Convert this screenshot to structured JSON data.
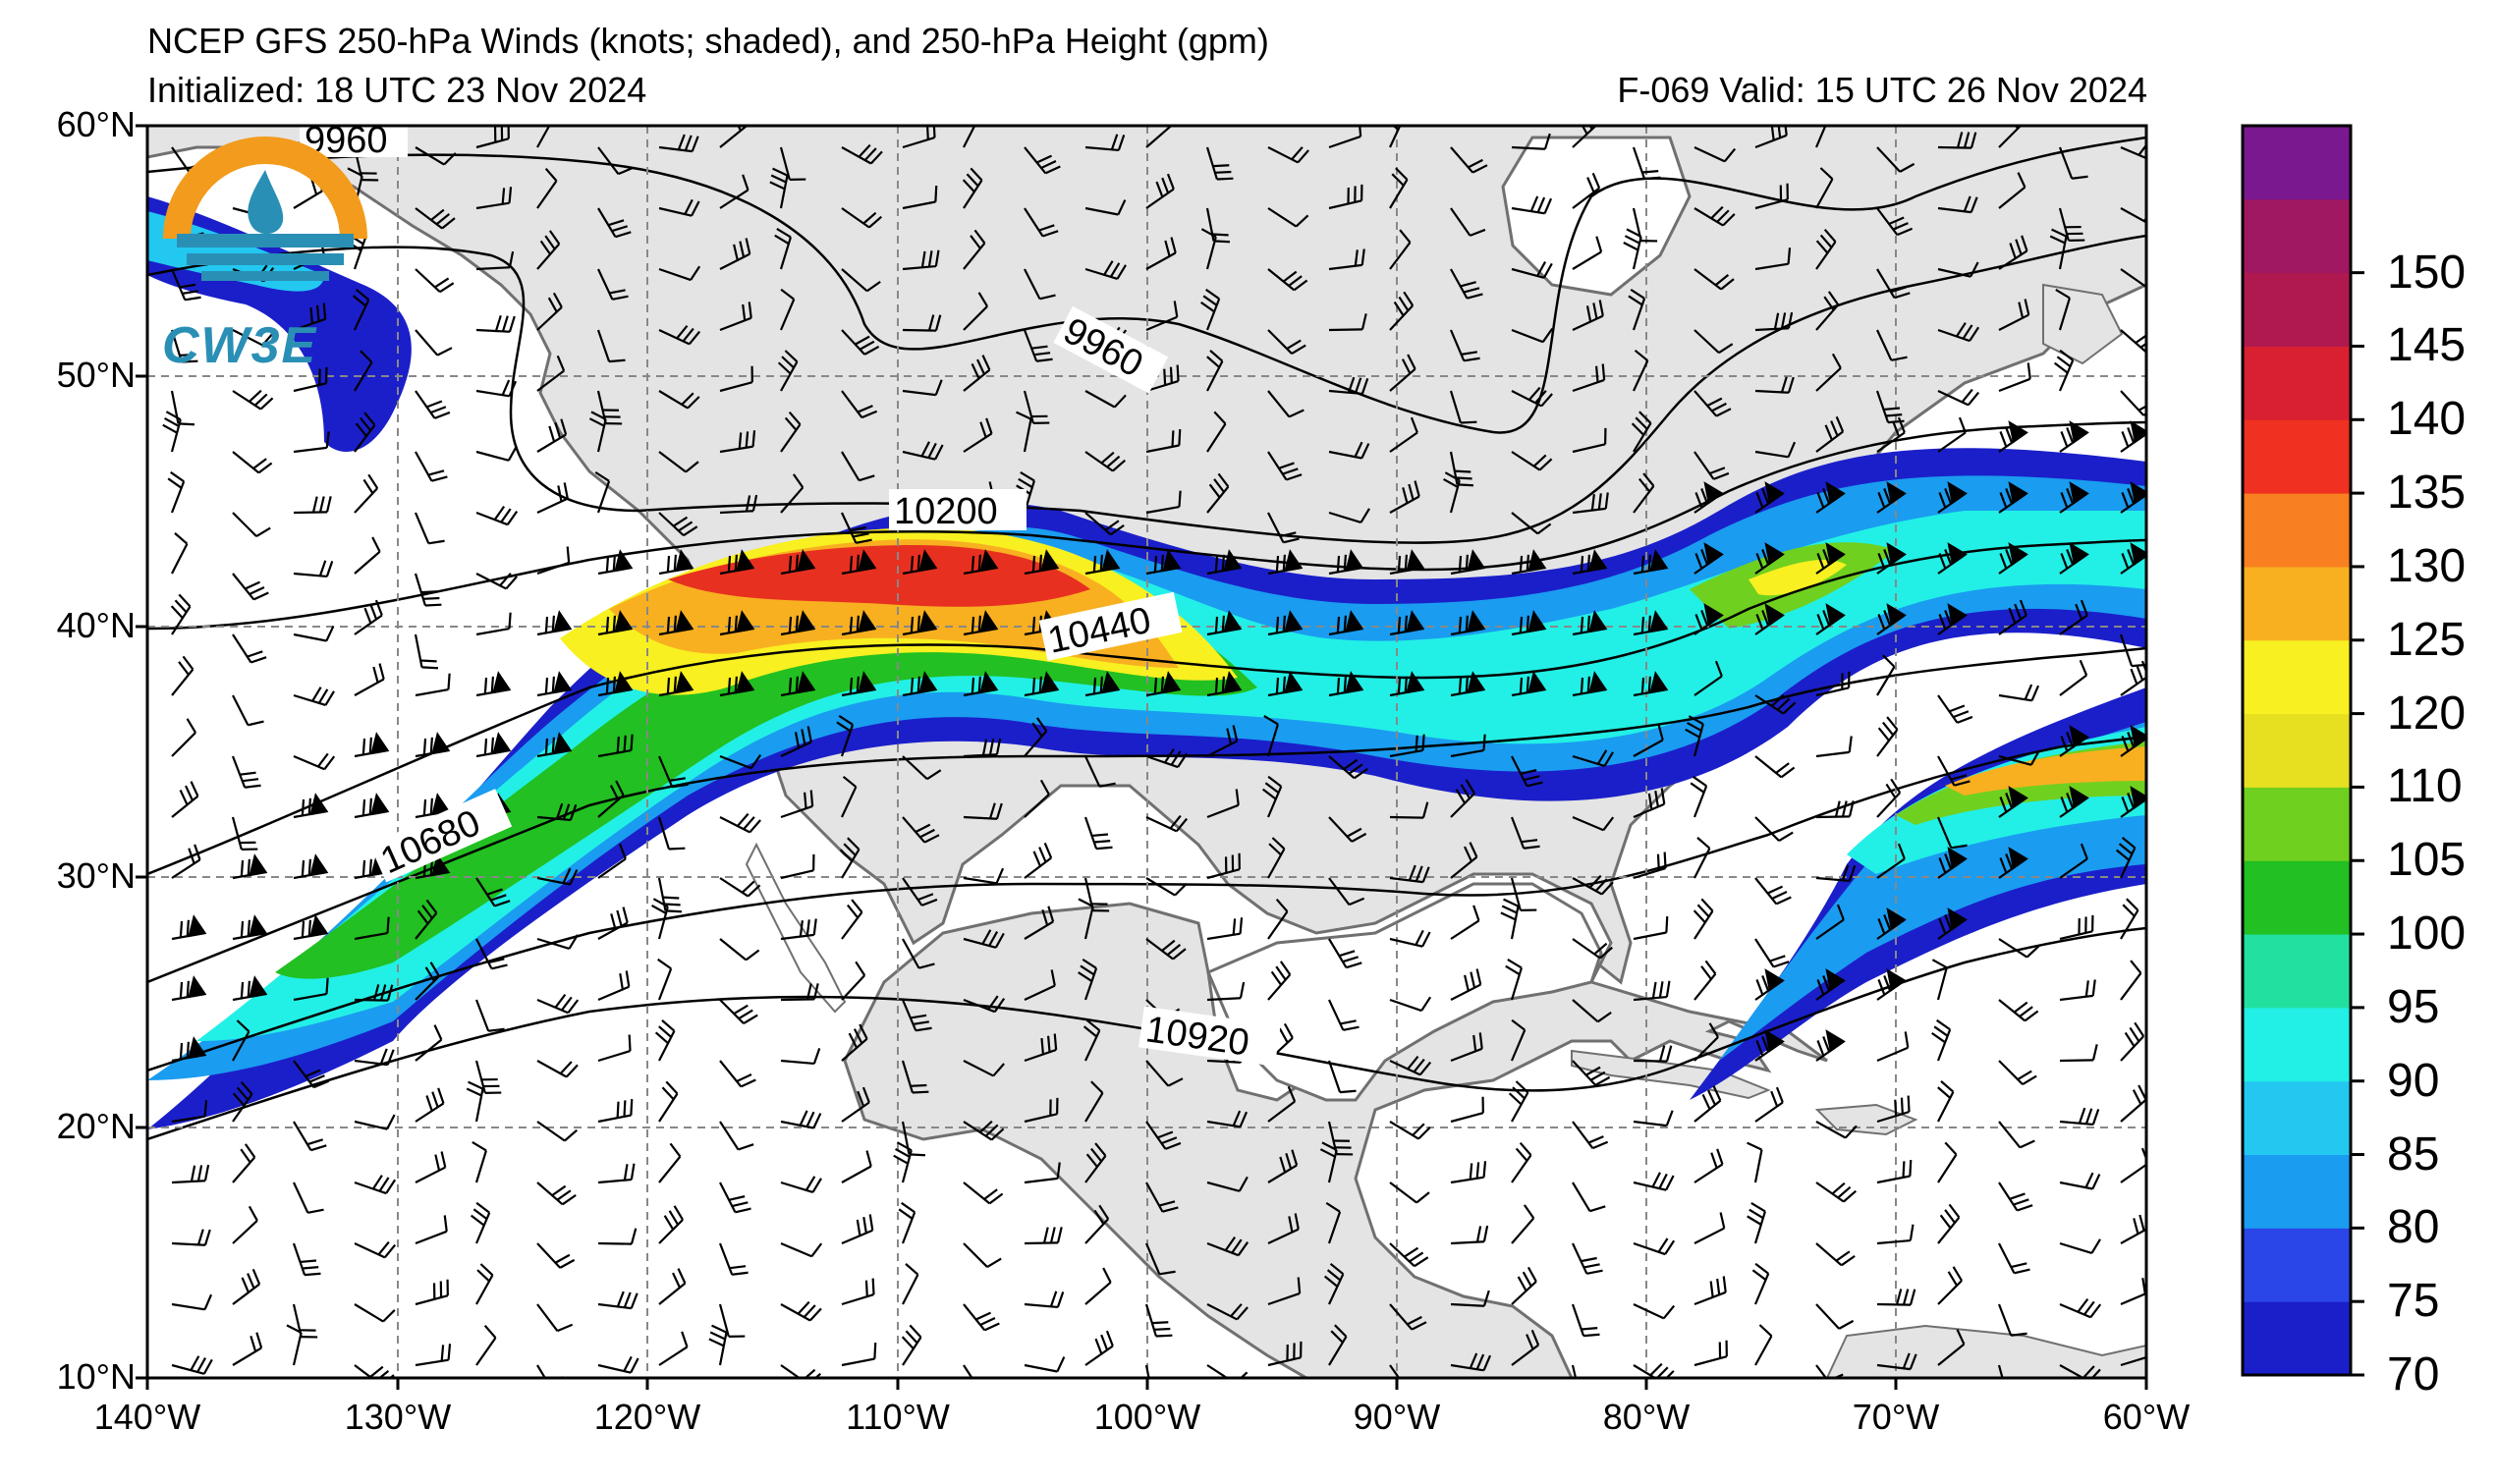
{
  "title": "NCEP GFS 250-hPa Winds (knots; shaded), and 250-hPa Height (gpm)",
  "initialized": "Initialized: 18 UTC 23 Nov 2024",
  "valid": "F-069  Valid: 15 UTC 26 Nov 2024",
  "logo_text": "CW3E",
  "lat_labels": [
    "60°N",
    "50°N",
    "40°N",
    "30°N",
    "20°N",
    "10°N"
  ],
  "lon_labels": [
    "140°W",
    "130°W",
    "120°W",
    "110°W",
    "100°W",
    "90°W",
    "80°W",
    "70°W",
    "60°W"
  ],
  "height_contour_labels": [
    "9960",
    "9960",
    "10200",
    "10440",
    "10680",
    "10920"
  ],
  "colorbar": {
    "ticks": [
      "70",
      "75",
      "80",
      "85",
      "90",
      "95",
      "100",
      "105",
      "110",
      "120",
      "125",
      "130",
      "135",
      "140",
      "145",
      "150"
    ],
    "colors": [
      "#1b1fc9",
      "#2a45e8",
      "#1a9cf0",
      "#22c8f0",
      "#22f0e6",
      "#22e0a0",
      "#22c022",
      "#70d020",
      "#e6e020",
      "#f8f020",
      "#f8b020",
      "#f88020",
      "#f03020",
      "#d82030",
      "#b01850",
      "#a01860",
      "#7a1890"
    ]
  },
  "colors": {
    "land": "#e4e4e4",
    "ocean": "#ffffff",
    "jet_core": "#e83020"
  }
}
